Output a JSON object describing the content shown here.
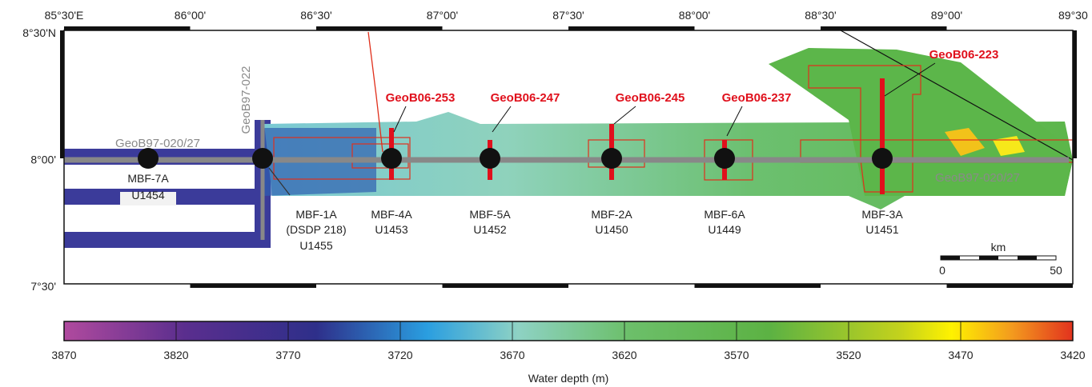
{
  "map": {
    "lon_labels": [
      "85°30'E",
      "86°00'",
      "86°30'",
      "87°00'",
      "87°30'",
      "88°00'",
      "88°30'",
      "89°00'",
      "89°30"
    ],
    "lat_labels": [
      "8°30'N",
      "8°00'",
      "7°30'"
    ],
    "seismic_lines": [
      "GeoB97-020/27",
      "GeoB97-022",
      "GeoB97-020/27"
    ],
    "cores": [
      "GeoB06-253",
      "GeoB06-247",
      "GeoB06-245",
      "GeoB06-237",
      "GeoB06-223"
    ],
    "sites": [
      {
        "lines": [
          "MBF-7A",
          "U1454"
        ]
      },
      {
        "lines": [
          "MBF-1A",
          "(DSDP 218)",
          "U1455"
        ]
      },
      {
        "lines": [
          "MBF-4A",
          "U1453"
        ]
      },
      {
        "lines": [
          "MBF-5A",
          "U1452"
        ]
      },
      {
        "lines": [
          "MBF-2A",
          "U1450"
        ]
      },
      {
        "lines": [
          "MBF-6A",
          "U1449"
        ]
      },
      {
        "lines": [
          "MBF-3A",
          "U1451"
        ]
      }
    ],
    "scale_bar": {
      "unit": "km",
      "labels": [
        "0",
        "50"
      ]
    }
  },
  "colorbar": {
    "ticks": [
      3870,
      3820,
      3770,
      3720,
      3670,
      3620,
      3570,
      3520,
      3470,
      3420
    ],
    "label": "Water depth (m)"
  }
}
